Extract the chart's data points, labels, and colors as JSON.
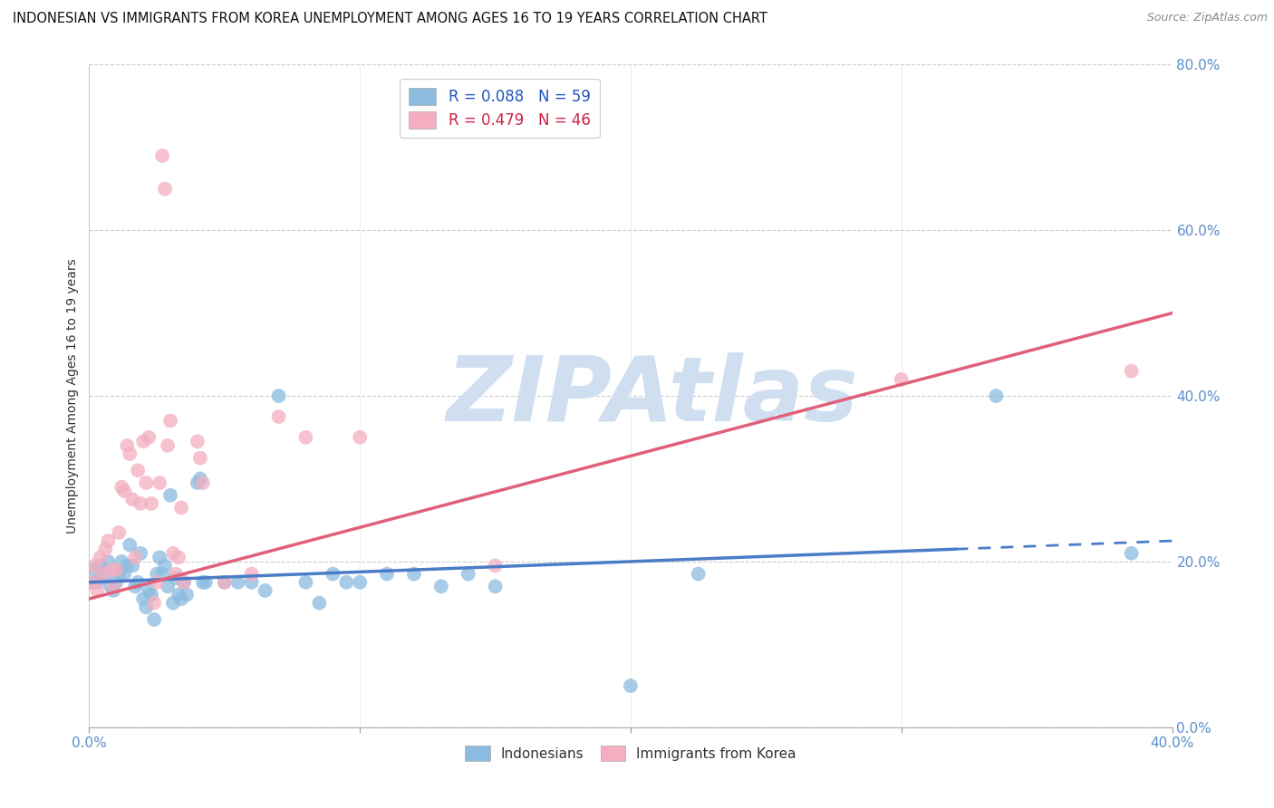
{
  "title": "INDONESIAN VS IMMIGRANTS FROM KOREA UNEMPLOYMENT AMONG AGES 16 TO 19 YEARS CORRELATION CHART",
  "source": "Source: ZipAtlas.com",
  "ylabel": "Unemployment Among Ages 16 to 19 years",
  "legend_entries": [
    {
      "label": "R = 0.088   N = 59",
      "color": "#a8c8e8"
    },
    {
      "label": "R = 0.479   N = 46",
      "color": "#f4aec0"
    }
  ],
  "legend_bottom": [
    "Indonesians",
    "Immigrants from Korea"
  ],
  "indonesian_color": "#8bbce0",
  "korean_color": "#f4aec0",
  "trend_indonesian_color": "#4a7cc7",
  "trend_korean_color": "#e0607a",
  "watermark": "ZIPAtlas",
  "watermark_color": "#d0dff0",
  "indonesian_points": [
    [
      0.001,
      0.175
    ],
    [
      0.002,
      0.19
    ],
    [
      0.003,
      0.175
    ],
    [
      0.004,
      0.195
    ],
    [
      0.005,
      0.18
    ],
    [
      0.006,
      0.185
    ],
    [
      0.007,
      0.2
    ],
    [
      0.008,
      0.17
    ],
    [
      0.009,
      0.165
    ],
    [
      0.01,
      0.175
    ],
    [
      0.011,
      0.185
    ],
    [
      0.012,
      0.2
    ],
    [
      0.013,
      0.185
    ],
    [
      0.014,
      0.195
    ],
    [
      0.015,
      0.22
    ],
    [
      0.016,
      0.195
    ],
    [
      0.017,
      0.17
    ],
    [
      0.018,
      0.175
    ],
    [
      0.019,
      0.21
    ],
    [
      0.02,
      0.155
    ],
    [
      0.021,
      0.145
    ],
    [
      0.022,
      0.165
    ],
    [
      0.023,
      0.16
    ],
    [
      0.024,
      0.13
    ],
    [
      0.025,
      0.185
    ],
    [
      0.026,
      0.205
    ],
    [
      0.027,
      0.185
    ],
    [
      0.028,
      0.195
    ],
    [
      0.029,
      0.17
    ],
    [
      0.03,
      0.28
    ],
    [
      0.031,
      0.15
    ],
    [
      0.032,
      0.18
    ],
    [
      0.033,
      0.16
    ],
    [
      0.034,
      0.155
    ],
    [
      0.035,
      0.175
    ],
    [
      0.036,
      0.16
    ],
    [
      0.04,
      0.295
    ],
    [
      0.041,
      0.3
    ],
    [
      0.042,
      0.175
    ],
    [
      0.043,
      0.175
    ],
    [
      0.05,
      0.175
    ],
    [
      0.055,
      0.175
    ],
    [
      0.06,
      0.175
    ],
    [
      0.065,
      0.165
    ],
    [
      0.07,
      0.4
    ],
    [
      0.08,
      0.175
    ],
    [
      0.085,
      0.15
    ],
    [
      0.09,
      0.185
    ],
    [
      0.095,
      0.175
    ],
    [
      0.1,
      0.175
    ],
    [
      0.11,
      0.185
    ],
    [
      0.12,
      0.185
    ],
    [
      0.13,
      0.17
    ],
    [
      0.14,
      0.185
    ],
    [
      0.15,
      0.17
    ],
    [
      0.2,
      0.05
    ],
    [
      0.225,
      0.185
    ],
    [
      0.335,
      0.4
    ],
    [
      0.385,
      0.21
    ]
  ],
  "korean_points": [
    [
      0.001,
      0.175
    ],
    [
      0.002,
      0.195
    ],
    [
      0.003,
      0.165
    ],
    [
      0.004,
      0.205
    ],
    [
      0.005,
      0.185
    ],
    [
      0.006,
      0.215
    ],
    [
      0.007,
      0.225
    ],
    [
      0.008,
      0.19
    ],
    [
      0.009,
      0.17
    ],
    [
      0.01,
      0.19
    ],
    [
      0.011,
      0.235
    ],
    [
      0.012,
      0.29
    ],
    [
      0.013,
      0.285
    ],
    [
      0.014,
      0.34
    ],
    [
      0.015,
      0.33
    ],
    [
      0.016,
      0.275
    ],
    [
      0.017,
      0.205
    ],
    [
      0.018,
      0.31
    ],
    [
      0.019,
      0.27
    ],
    [
      0.02,
      0.345
    ],
    [
      0.021,
      0.295
    ],
    [
      0.022,
      0.35
    ],
    [
      0.023,
      0.27
    ],
    [
      0.024,
      0.15
    ],
    [
      0.025,
      0.175
    ],
    [
      0.026,
      0.295
    ],
    [
      0.027,
      0.69
    ],
    [
      0.028,
      0.65
    ],
    [
      0.029,
      0.34
    ],
    [
      0.03,
      0.37
    ],
    [
      0.031,
      0.21
    ],
    [
      0.032,
      0.185
    ],
    [
      0.033,
      0.205
    ],
    [
      0.034,
      0.265
    ],
    [
      0.035,
      0.175
    ],
    [
      0.04,
      0.345
    ],
    [
      0.041,
      0.325
    ],
    [
      0.042,
      0.295
    ],
    [
      0.05,
      0.175
    ],
    [
      0.06,
      0.185
    ],
    [
      0.07,
      0.375
    ],
    [
      0.08,
      0.35
    ],
    [
      0.1,
      0.35
    ],
    [
      0.15,
      0.195
    ],
    [
      0.3,
      0.42
    ],
    [
      0.385,
      0.43
    ]
  ],
  "indonesian_trend_x": [
    0.0,
    0.4
  ],
  "indonesian_trend_y": [
    0.175,
    0.225
  ],
  "indonesian_trend_solid_end": 0.32,
  "korean_trend_x": [
    0.0,
    0.4
  ],
  "korean_trend_y": [
    0.155,
    0.5
  ],
  "xlim": [
    0.0,
    0.4
  ],
  "ylim": [
    0.0,
    0.8
  ],
  "ytick_vals": [
    0.0,
    0.2,
    0.4,
    0.6,
    0.8
  ],
  "xtick_vals": [
    0.0,
    0.1,
    0.2,
    0.3,
    0.4
  ],
  "xtick_show": [
    0.0,
    0.4
  ],
  "grid_color": "#cccccc",
  "tick_color": "#5b8dc8",
  "title_fontsize": 10.5,
  "legend_fontsize": 11,
  "axis_label_fontsize": 10
}
